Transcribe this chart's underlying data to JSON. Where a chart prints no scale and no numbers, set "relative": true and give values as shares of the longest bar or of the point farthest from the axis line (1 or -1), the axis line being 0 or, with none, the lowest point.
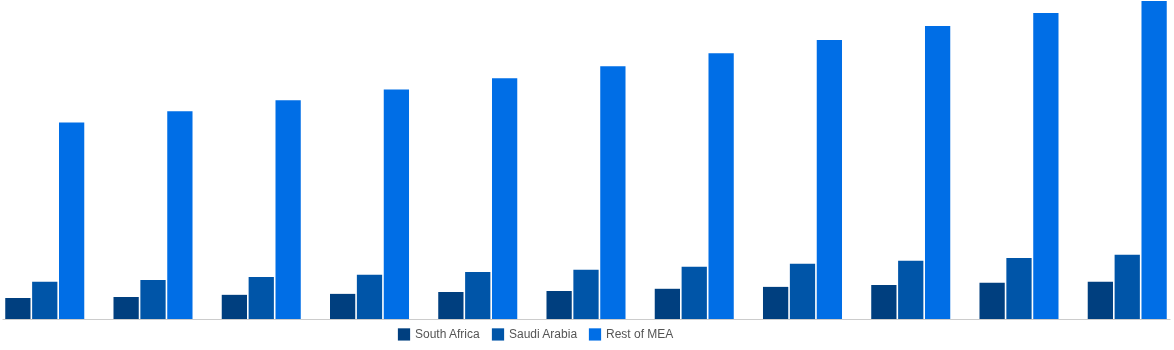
{
  "chart_data": {
    "type": "bar",
    "relative": true,
    "legend": "bottom",
    "categories": [
      null,
      null,
      null,
      null,
      null,
      null,
      null,
      null,
      null,
      null,
      null
    ],
    "series": [
      {
        "name": "South Africa",
        "color": "#003f7f",
        "values": [
          0.066,
          0.069,
          0.076,
          0.079,
          0.085,
          0.088,
          0.095,
          0.101,
          0.107,
          0.114,
          0.117
        ]
      },
      {
        "name": "Saudi Arabia",
        "color": "#0055a8",
        "values": [
          0.117,
          0.123,
          0.132,
          0.139,
          0.148,
          0.155,
          0.164,
          0.174,
          0.183,
          0.192,
          0.202
        ]
      },
      {
        "name": "Rest of MEA",
        "color": "#006ee6",
        "values": [
          0.618,
          0.653,
          0.688,
          0.722,
          0.757,
          0.795,
          0.836,
          0.877,
          0.921,
          0.962,
          1
        ]
      }
    ]
  }
}
